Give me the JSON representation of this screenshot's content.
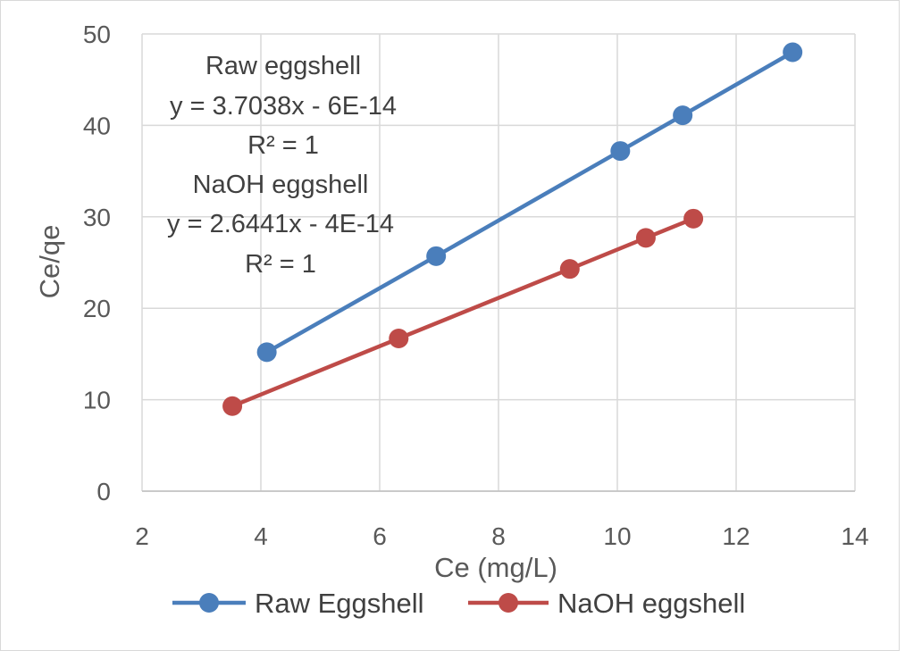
{
  "chart_data": {
    "type": "scatter",
    "title": "",
    "xlabel": "Ce (mg/L)",
    "ylabel": "Ce/qe",
    "xlim": [
      2,
      14
    ],
    "ylim": [
      0,
      50
    ],
    "x_ticks": [
      "2",
      "4",
      "6",
      "8",
      "10",
      "12",
      "14"
    ],
    "y_ticks": [
      "0",
      "10",
      "20",
      "30",
      "40",
      "50"
    ],
    "grid": true,
    "legend_position": "bottom",
    "series": [
      {
        "name": "Raw Eggshell",
        "color": "#4a7ebb",
        "points": [
          {
            "x": 4.1,
            "y": 15.2
          },
          {
            "x": 6.95,
            "y": 25.7
          },
          {
            "x": 10.05,
            "y": 37.2
          },
          {
            "x": 11.1,
            "y": 41.1
          },
          {
            "x": 12.95,
            "y": 48.0
          }
        ]
      },
      {
        "name": "NaOH eggshell",
        "color": "#be4b48",
        "points": [
          {
            "x": 3.52,
            "y": 9.3
          },
          {
            "x": 6.32,
            "y": 16.7
          },
          {
            "x": 9.2,
            "y": 24.3
          },
          {
            "x": 10.48,
            "y": 27.7
          },
          {
            "x": 11.28,
            "y": 29.8
          }
        ]
      }
    ],
    "annotations": [
      "Raw eggshell",
      "y = 3.7038x - 6E-14",
      "R² = 1",
      "NaOH eggshell",
      "y = 2.6441x - 4E-14",
      "R² = 1"
    ]
  }
}
